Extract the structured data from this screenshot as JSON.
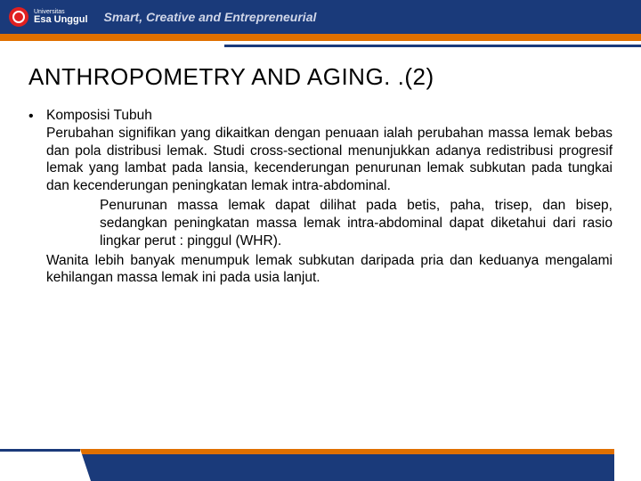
{
  "header": {
    "logo_small": "Universitas",
    "logo_big": "Esa Unggul",
    "tagline": "Smart, Creative and Entrepreneurial"
  },
  "title": "ANTHROPOMETRY AND AGING. .(2)",
  "bullet": "•",
  "section_heading": "Komposisi Tubuh",
  "paragraph1": "Perubahan signifikan yang dikaitkan dengan penuaan ialah perubahan massa lemak bebas dan pola distribusi lemak. Studi cross-sectional menunjukkan adanya redistribusi progresif lemak yang lambat pada lansia, kecenderungan penurunan lemak subkutan pada tungkai dan kecenderungan peningkatan lemak intra-abdominal.",
  "paragraph2": "Penurunan massa lemak dapat dilihat pada betis, paha, trisep, dan bisep, sedangkan peningkatan massa lemak intra-abdominal dapat diketahui dari rasio lingkar perut : pinggul (WHR).",
  "paragraph3": "Wanita lebih banyak menumpuk lemak subkutan daripada pria dan keduanya mengalami kehilangan massa lemak ini pada usia lanjut.",
  "colors": {
    "header_bg": "#1a3a7a",
    "orange": "#e07000",
    "logo_red": "#e02020",
    "text": "#000000",
    "tagline": "#d0d6e8"
  }
}
